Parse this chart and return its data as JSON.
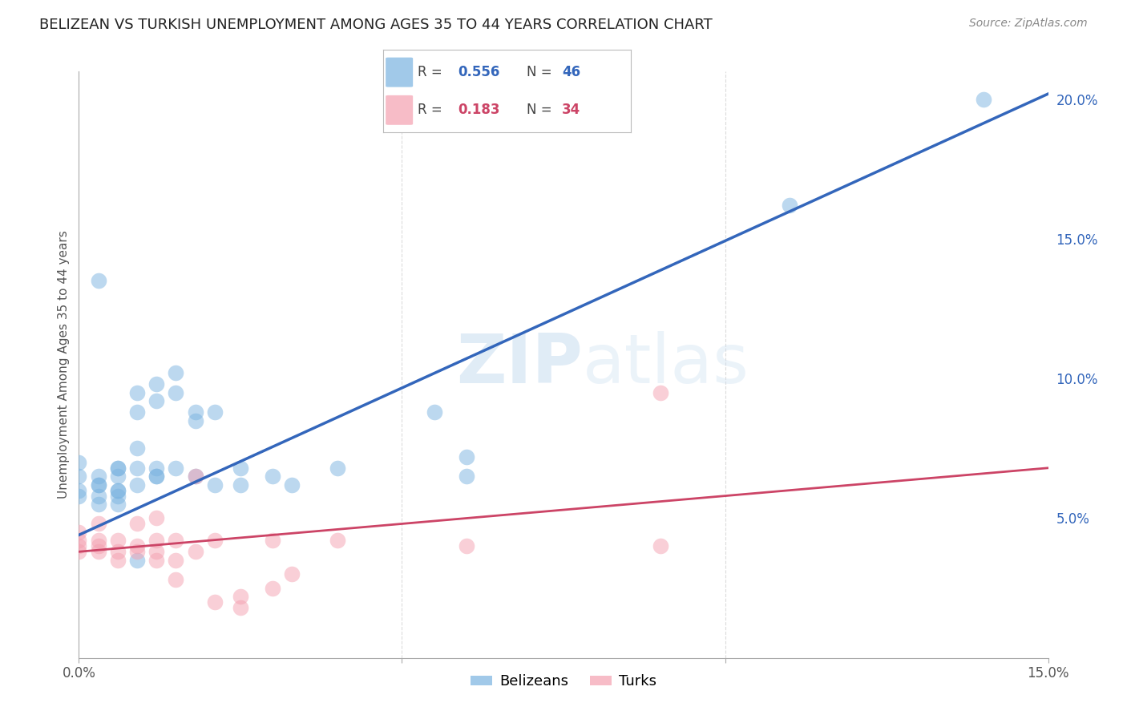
{
  "title": "BELIZEAN VS TURKISH UNEMPLOYMENT AMONG AGES 35 TO 44 YEARS CORRELATION CHART",
  "source": "Source: ZipAtlas.com",
  "ylabel": "Unemployment Among Ages 35 to 44 years",
  "xlim": [
    0.0,
    0.15
  ],
  "ylim": [
    0.0,
    0.21
  ],
  "y_ticks_right": [
    0.05,
    0.1,
    0.15,
    0.2
  ],
  "y_tick_labels_right": [
    "5.0%",
    "10.0%",
    "15.0%",
    "20.0%"
  ],
  "background_color": "#ffffff",
  "grid_color": "#cccccc",
  "blue_dot_color": "#7ab3e0",
  "pink_dot_color": "#f4a0b0",
  "blue_line_color": "#3366bb",
  "pink_line_color": "#cc4466",
  "legend_R_blue": "0.556",
  "legend_N_blue": "46",
  "legend_R_pink": "0.183",
  "legend_N_pink": "34",
  "blue_trendline_x": [
    0.0,
    0.15
  ],
  "blue_trendline_y": [
    0.044,
    0.202
  ],
  "pink_trendline_x": [
    0.0,
    0.15
  ],
  "pink_trendline_y": [
    0.038,
    0.068
  ],
  "belizean_x": [
    0.0,
    0.0,
    0.0,
    0.0,
    0.003,
    0.003,
    0.003,
    0.003,
    0.003,
    0.006,
    0.006,
    0.006,
    0.006,
    0.006,
    0.006,
    0.009,
    0.009,
    0.009,
    0.009,
    0.009,
    0.012,
    0.012,
    0.012,
    0.012,
    0.015,
    0.015,
    0.015,
    0.018,
    0.018,
    0.018,
    0.021,
    0.021,
    0.025,
    0.025,
    0.03,
    0.033,
    0.04,
    0.055,
    0.06,
    0.06,
    0.003,
    0.11,
    0.14,
    0.006,
    0.009,
    0.012
  ],
  "belizean_y": [
    0.06,
    0.065,
    0.07,
    0.058,
    0.065,
    0.062,
    0.058,
    0.055,
    0.062,
    0.068,
    0.065,
    0.06,
    0.058,
    0.055,
    0.06,
    0.095,
    0.088,
    0.075,
    0.068,
    0.062,
    0.098,
    0.092,
    0.068,
    0.065,
    0.102,
    0.095,
    0.068,
    0.088,
    0.085,
    0.065,
    0.088,
    0.062,
    0.068,
    0.062,
    0.065,
    0.062,
    0.068,
    0.088,
    0.072,
    0.065,
    0.135,
    0.162,
    0.2,
    0.068,
    0.035,
    0.065
  ],
  "turkish_x": [
    0.0,
    0.0,
    0.0,
    0.0,
    0.003,
    0.003,
    0.003,
    0.003,
    0.006,
    0.006,
    0.006,
    0.009,
    0.009,
    0.009,
    0.012,
    0.012,
    0.012,
    0.012,
    0.015,
    0.015,
    0.015,
    0.018,
    0.018,
    0.021,
    0.021,
    0.025,
    0.025,
    0.03,
    0.03,
    0.033,
    0.04,
    0.06,
    0.09,
    0.09
  ],
  "turkish_y": [
    0.04,
    0.045,
    0.042,
    0.038,
    0.042,
    0.04,
    0.048,
    0.038,
    0.042,
    0.038,
    0.035,
    0.048,
    0.04,
    0.038,
    0.05,
    0.042,
    0.038,
    0.035,
    0.042,
    0.035,
    0.028,
    0.065,
    0.038,
    0.042,
    0.02,
    0.022,
    0.018,
    0.025,
    0.042,
    0.03,
    0.042,
    0.04,
    0.095,
    0.04
  ]
}
